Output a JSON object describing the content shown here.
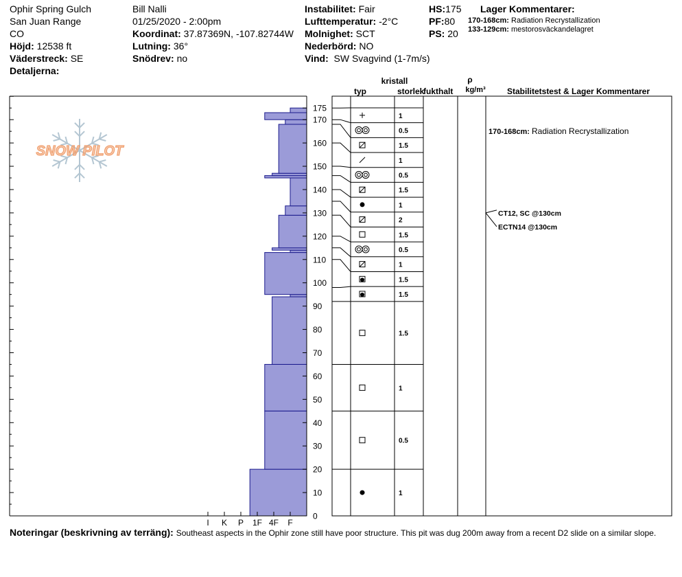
{
  "header": {
    "location": "Ophir Spring Gulch",
    "range": "San Juan Range",
    "state": "CO",
    "elevation_label": "Höjd:",
    "elevation_value": "12538 ft",
    "aspect_label": "Väderstreck:",
    "aspect_value": "SE",
    "details_label": "Detaljerna:",
    "observer": "Bill Nalli",
    "datetime": "01/25/2020 - 2:00pm",
    "coord_label": "Koordinat:",
    "coord_value": "37.87369N, -107.82744W",
    "slope_label": "Lutning:",
    "slope_value": "36°",
    "drift_label": "Snödrev:",
    "drift_value": "no",
    "stability_label": "Instabilitet:",
    "stability_value": "Fair",
    "airtemp_label": "Lufttemperatur:",
    "airtemp_value": "-2°C",
    "sky_label": "Molnighet:",
    "sky_value": "SCT",
    "precip_label": "Nederbörd:",
    "precip_value": "NO",
    "wind_label": "Vind:",
    "wind_value": "SW Svagvind (1-7m/s)",
    "hs_label": "HS:",
    "hs_value": "175",
    "pf_label": "PF:",
    "pf_value": "80",
    "ps_label": "PS:",
    "ps_value": "20",
    "layer_comments_title": "Lager Kommentarer:",
    "layer_comments": [
      {
        "range": "170-168cm:",
        "text": "Radiation Recrystallization"
      },
      {
        "range": "133-129cm:",
        "text": "mestorosväckandelagret"
      }
    ]
  },
  "columns": {
    "kristall": "kristall",
    "typ": "typ",
    "storlek": "storlek",
    "fukthalt": "fukthalt",
    "rho": "ρ",
    "density_unit": "kg/m³",
    "stability": "Stabilitetstest & Lager Kommentarer"
  },
  "logo_text": "SNOW PILOT",
  "colors": {
    "hardness_fill": "#9b9bd8",
    "hardness_stroke": "#1a1a8c",
    "logo": "#f0a070",
    "flake": "#b4c6d2"
  },
  "chart_data": {
    "type": "bar",
    "orientation": "horizontal",
    "title": "",
    "y_axis": {
      "label": "",
      "range": [
        0,
        180
      ],
      "ticks": [
        0,
        10,
        20,
        30,
        40,
        50,
        60,
        70,
        80,
        90,
        100,
        110,
        120,
        130,
        140,
        150,
        160,
        170,
        175
      ]
    },
    "x_axis": {
      "label": "",
      "ticks": [
        "I",
        "K",
        "P",
        "1F",
        "4F",
        "F"
      ],
      "hardness_scale": {
        "F": 1,
        "4F": 2,
        "1F": 3,
        "P": 4,
        "K": 5,
        "I": 6
      }
    },
    "hardness_profile": [
      {
        "bottom": 0,
        "top": 20,
        "hardness": 3.45
      },
      {
        "bottom": 20,
        "top": 45,
        "hardness": 2.55
      },
      {
        "bottom": 45,
        "top": 65,
        "hardness": 2.55
      },
      {
        "bottom": 65,
        "top": 94,
        "hardness": 2.1
      },
      {
        "bottom": 94,
        "top": 95,
        "hardness": 1.0
      },
      {
        "bottom": 95,
        "top": 113,
        "hardness": 2.55
      },
      {
        "bottom": 113,
        "top": 114,
        "hardness": 1.0
      },
      {
        "bottom": 114,
        "top": 115,
        "hardness": 2.1
      },
      {
        "bottom": 115,
        "top": 129,
        "hardness": 1.7
      },
      {
        "bottom": 129,
        "top": 133,
        "hardness": 1.3
      },
      {
        "bottom": 133,
        "top": 145,
        "hardness": 1.0
      },
      {
        "bottom": 145,
        "top": 146,
        "hardness": 2.55
      },
      {
        "bottom": 146,
        "top": 147,
        "hardness": 2.1
      },
      {
        "bottom": 147,
        "top": 168,
        "hardness": 1.7
      },
      {
        "bottom": 168,
        "top": 170,
        "hardness": 1.3
      },
      {
        "bottom": 170,
        "top": 173,
        "hardness": 2.55
      },
      {
        "bottom": 173,
        "top": 175,
        "hardness": 1.0
      }
    ],
    "grain_layers": [
      {
        "top": 175,
        "bottom": 170,
        "grain": "plus",
        "size": "1"
      },
      {
        "top": 170,
        "bottom": 168,
        "grain": "double-ring",
        "size": "0.5"
      },
      {
        "top": 168,
        "bottom": 160,
        "grain": "box-slash",
        "size": "1.5"
      },
      {
        "top": 160,
        "bottom": 150,
        "grain": "slash",
        "size": "1"
      },
      {
        "top": 150,
        "bottom": 146,
        "grain": "double-ring",
        "size": "0.5"
      },
      {
        "top": 146,
        "bottom": 140,
        "grain": "box-slash",
        "size": "1.5"
      },
      {
        "top": 140,
        "bottom": 135,
        "grain": "dot",
        "size": "1"
      },
      {
        "top": 135,
        "bottom": 129,
        "grain": "box-slash",
        "size": "2"
      },
      {
        "top": 129,
        "bottom": 120,
        "grain": "box",
        "size": "1.5"
      },
      {
        "top": 120,
        "bottom": 115,
        "grain": "double-ring",
        "size": "0.5"
      },
      {
        "top": 115,
        "bottom": 110,
        "grain": "box-slash",
        "size": "1"
      },
      {
        "top": 110,
        "bottom": 98,
        "grain": "box-dot",
        "size": "1.5"
      },
      {
        "top": 98,
        "bottom": 92,
        "grain": "box-dot",
        "size": "1.5"
      },
      {
        "top": 92,
        "bottom": 65,
        "grain": "box",
        "size": "1.5"
      },
      {
        "top": 65,
        "bottom": 45,
        "grain": "box",
        "size": "1"
      },
      {
        "top": 45,
        "bottom": 20,
        "grain": "box",
        "size": "0.5"
      },
      {
        "top": 20,
        "bottom": 0,
        "grain": "dot",
        "size": "1"
      }
    ],
    "annotations": [
      {
        "depth": 165,
        "label": "170-168cm:",
        "text": "Radiation Recrystallization"
      }
    ],
    "stability_tests": [
      {
        "depth": 130,
        "text": "CT12, SC @130cm"
      },
      {
        "depth": 130,
        "text": "ECTN14 @130cm"
      }
    ]
  },
  "notes_label": "Noteringar (beskrivning av terräng):",
  "notes_text": "Southeast aspects in the Ophir zone still have poor structure. This pit was dug 200m away from a recent D2 slide on a similar slope."
}
